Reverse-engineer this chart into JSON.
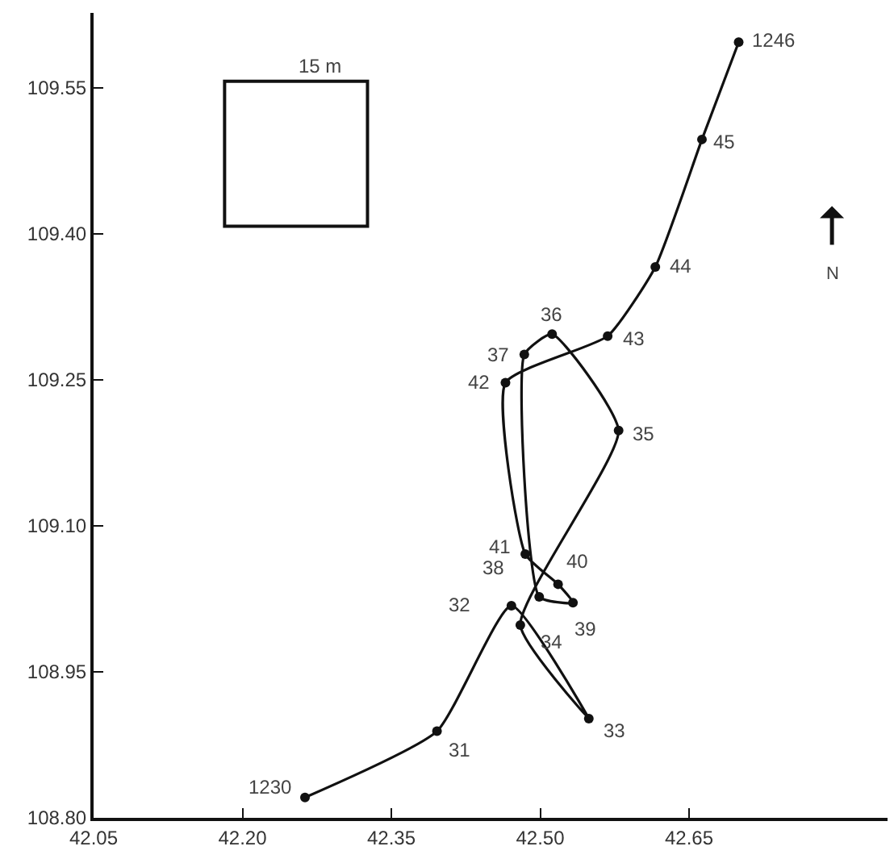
{
  "chart_data": {
    "type": "line",
    "x": [
      42.263,
      42.396,
      42.471,
      42.549,
      42.48,
      42.579,
      42.512,
      42.484,
      42.499,
      42.533,
      42.518,
      42.485,
      42.465,
      42.568,
      42.616,
      42.663,
      42.7
    ],
    "series": [
      {
        "color": "#111111",
        "values": [
          108.821,
          108.889,
          109.018,
          108.902,
          108.998,
          109.198,
          109.297,
          109.276,
          109.027,
          109.021,
          109.04,
          109.071,
          109.247,
          109.295,
          109.366,
          109.497,
          109.597
        ]
      }
    ],
    "xlim": [
      42.05,
      42.85
    ],
    "xticks": [
      42.05,
      {
        "value": 42.2,
        "label": "42.20"
      },
      42.35,
      {
        "value": 42.5,
        "label": "42.50"
      },
      42.65
    ],
    "ylim": [
      108.8,
      109.627
    ],
    "yticks": [
      {
        "value": 108.8,
        "label": "108.80"
      },
      108.95,
      {
        "value": 109.1,
        "label": "109.10"
      },
      109.25,
      {
        "value": 109.4,
        "label": "109.40"
      },
      109.55
    ],
    "marker": "circle",
    "annotations": [
      {
        "text": "1230",
        "x": 42.263,
        "y": 108.821
      },
      {
        "text": "31",
        "x": 42.396,
        "y": 108.889
      },
      {
        "text": "32",
        "x": 42.471,
        "y": 109.018
      },
      {
        "text": "33",
        "x": 42.549,
        "y": 108.902
      },
      {
        "text": "34",
        "x": 42.48,
        "y": 108.998
      },
      {
        "text": "35",
        "x": 42.579,
        "y": 109.198
      },
      {
        "text": "36",
        "x": 42.512,
        "y": 109.297
      },
      {
        "text": "37",
        "x": 42.484,
        "y": 109.276
      },
      {
        "text": "38",
        "x": 42.499,
        "y": 109.027
      },
      {
        "text": "39",
        "x": 42.533,
        "y": 109.021
      },
      {
        "text": "40",
        "x": 42.518,
        "y": 109.04
      },
      {
        "text": "41",
        "x": 42.485,
        "y": 109.071
      },
      {
        "text": "42",
        "x": 42.465,
        "y": 109.247
      },
      {
        "text": "43",
        "x": 42.568,
        "y": 109.295
      },
      {
        "text": "44",
        "x": 42.616,
        "y": 109.366
      },
      {
        "text": "45",
        "x": 42.663,
        "y": 109.497
      },
      {
        "text": "1246",
        "x": 42.7,
        "y": 109.597
      },
      "15 m",
      "N"
    ]
  }
}
